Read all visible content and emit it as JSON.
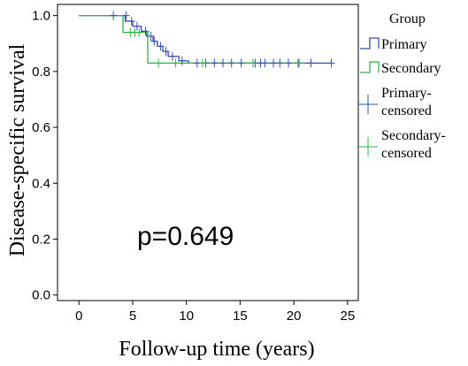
{
  "chart_data": {
    "type": "line",
    "xlabel": "Follow-up time (years)",
    "ylabel": "Disease-specific survival",
    "xlim": [
      -2,
      26
    ],
    "ylim": [
      -0.02,
      1.04
    ],
    "xticks": [
      "0",
      "5",
      "10",
      "15",
      "20",
      "25"
    ],
    "yticks": [
      "0.0",
      "0.2",
      "0.4",
      "0.6",
      "0.8",
      "1.0"
    ],
    "annotation": "p=0.649",
    "legend": {
      "title": "Group",
      "position": "right",
      "entries": [
        {
          "label": "Primary",
          "kind": "step",
          "color": "#3a4ea8"
        },
        {
          "label": "Secondary",
          "kind": "step",
          "color": "#2fb34a"
        },
        {
          "label": "Primary-censored",
          "lines": [
            "Primary-",
            "censored"
          ],
          "kind": "cross",
          "color": "#3a4ea8"
        },
        {
          "label": "Secondary-censored",
          "lines": [
            "Secondary-",
            "censored"
          ],
          "kind": "cross",
          "color": "#2fb34a"
        }
      ]
    },
    "series": [
      {
        "name": "Primary",
        "color": "#3a4ea8",
        "steps": [
          [
            0,
            1.0
          ],
          [
            4.3,
            0.98
          ],
          [
            5.0,
            0.962
          ],
          [
            5.8,
            0.944
          ],
          [
            6.3,
            0.926
          ],
          [
            6.9,
            0.908
          ],
          [
            7.3,
            0.89
          ],
          [
            7.8,
            0.872
          ],
          [
            8.3,
            0.854
          ],
          [
            9.3,
            0.838
          ],
          [
            10.2,
            0.83
          ],
          [
            10.8,
            0.83
          ],
          [
            23.5,
            0.83
          ]
        ],
        "censored": [
          [
            3.2,
            1.0
          ],
          [
            4.4,
            1.0
          ],
          [
            4.9,
            0.98
          ],
          [
            5.4,
            0.962
          ],
          [
            6.2,
            0.944
          ],
          [
            6.7,
            0.926
          ],
          [
            7.0,
            0.908
          ],
          [
            7.6,
            0.89
          ],
          [
            8.1,
            0.872
          ],
          [
            8.7,
            0.854
          ],
          [
            9.6,
            0.838
          ],
          [
            11.0,
            0.83
          ],
          [
            11.8,
            0.83
          ],
          [
            12.6,
            0.83
          ],
          [
            13.4,
            0.83
          ],
          [
            14.2,
            0.83
          ],
          [
            15.1,
            0.83
          ],
          [
            16.4,
            0.83
          ],
          [
            16.9,
            0.83
          ],
          [
            17.3,
            0.83
          ],
          [
            18.1,
            0.83
          ],
          [
            18.7,
            0.83
          ],
          [
            19.5,
            0.83
          ],
          [
            20.4,
            0.83
          ],
          [
            21.6,
            0.83
          ],
          [
            23.5,
            0.83
          ]
        ]
      },
      {
        "name": "Secondary",
        "color": "#2fb34a",
        "steps": [
          [
            0,
            1.0
          ],
          [
            4.1,
            0.94
          ],
          [
            6.4,
            0.83
          ],
          [
            21.0,
            0.83
          ]
        ],
        "censored": [
          [
            4.8,
            0.94
          ],
          [
            5.2,
            0.94
          ],
          [
            5.6,
            0.94
          ],
          [
            7.4,
            0.83
          ],
          [
            9.0,
            0.83
          ],
          [
            11.5,
            0.83
          ],
          [
            16.2,
            0.83
          ],
          [
            20.5,
            0.83
          ]
        ]
      }
    ]
  }
}
